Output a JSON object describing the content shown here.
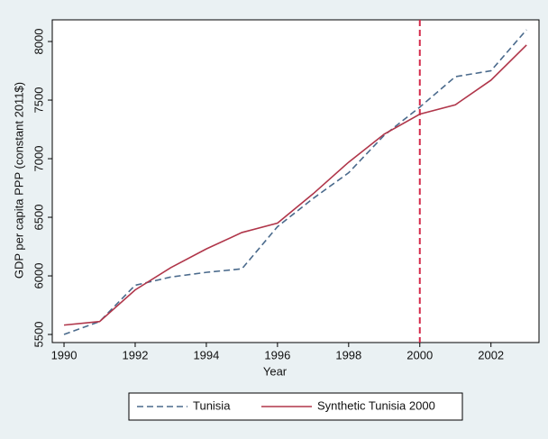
{
  "chart_data": {
    "type": "line",
    "xlabel": "Year",
    "ylabel": "GDP per capita PPP (constant 2011$)",
    "x": [
      1990,
      1991,
      1992,
      1993,
      1994,
      1995,
      1996,
      1997,
      1998,
      1999,
      2000,
      2001,
      2002,
      2003
    ],
    "series": [
      {
        "name": "Tunisia",
        "color": "#4a6a8c",
        "dash": true,
        "values": [
          5500,
          5610,
          5920,
          5990,
          6030,
          6060,
          6420,
          6660,
          6880,
          7200,
          7440,
          7700,
          7750,
          8100
        ]
      },
      {
        "name": "Synthetic Tunisia 2000",
        "color": "#b0364a",
        "dash": false,
        "values": [
          5580,
          5610,
          5880,
          6070,
          6230,
          6370,
          6450,
          6700,
          6970,
          7210,
          7380,
          7460,
          7670,
          7970
        ]
      }
    ],
    "vline": 2000,
    "vline_color": "#d42a4a",
    "xlim": [
      1989.67,
      2003.35
    ],
    "xticks": [
      1990,
      1992,
      1994,
      1996,
      1998,
      2000,
      2002
    ],
    "ylim": [
      5431,
      8185
    ],
    "yticks": [
      5500,
      6000,
      6500,
      7000,
      7500,
      8000
    ],
    "legend": "bottom"
  }
}
